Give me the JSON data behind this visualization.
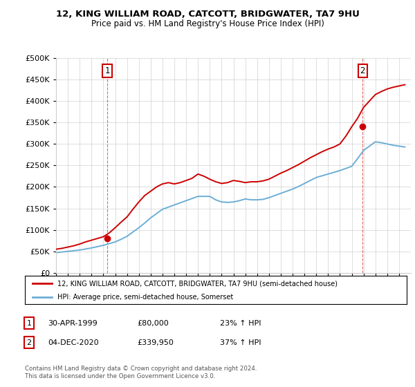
{
  "title": "12, KING WILLIAM ROAD, CATCOTT, BRIDGWATER, TA7 9HU",
  "subtitle": "Price paid vs. HM Land Registry's House Price Index (HPI)",
  "sale1_date": "30-APR-1999",
  "sale1_price": 80000,
  "sale1_hpi": "23% ↑ HPI",
  "sale1_year": 1999.33,
  "sale2_date": "04-DEC-2020",
  "sale2_price": 339950,
  "sale2_hpi": "37% ↑ HPI",
  "sale2_year": 2020.92,
  "legend_line1": "12, KING WILLIAM ROAD, CATCOTT, BRIDGWATER, TA7 9HU (semi-detached house)",
  "legend_line2": "HPI: Average price, semi-detached house, Somerset",
  "footer": "Contains HM Land Registry data © Crown copyright and database right 2024.\nThis data is licensed under the Open Government Licence v3.0.",
  "hpi_color": "#6baed6",
  "price_color": "#cc0000",
  "box_color": "#cc0000",
  "ylim": [
    0,
    500000
  ],
  "yticks": [
    0,
    50000,
    100000,
    150000,
    200000,
    250000,
    300000,
    350000,
    400000,
    450000,
    500000
  ],
  "xlim_start": 1995,
  "xlim_end": 2025,
  "hpi_years": [
    1995,
    1995.5,
    1996,
    1996.5,
    1997,
    1997.5,
    1998,
    1998.5,
    1999,
    1999.5,
    2000,
    2000.5,
    2001,
    2001.5,
    2002,
    2002.5,
    2003,
    2003.5,
    2004,
    2004.5,
    2005,
    2005.5,
    2006,
    2006.5,
    2007,
    2007.5,
    2008,
    2008.5,
    2009,
    2009.5,
    2010,
    2010.5,
    2011,
    2011.5,
    2012,
    2012.5,
    2013,
    2013.5,
    2014,
    2014.5,
    2015,
    2015.5,
    2016,
    2016.5,
    2017,
    2017.5,
    2018,
    2018.5,
    2019,
    2019.5,
    2020,
    2020.5,
    2021,
    2021.5,
    2022,
    2022.5,
    2023,
    2023.5,
    2024,
    2024.5
  ],
  "hpi_values": [
    47000,
    48500,
    50000,
    51500,
    53000,
    55500,
    58000,
    61000,
    64000,
    68000,
    72000,
    78000,
    85000,
    95000,
    105000,
    116000,
    128000,
    138000,
    148000,
    153000,
    158000,
    163000,
    168000,
    173000,
    178000,
    178000,
    178000,
    170000,
    165000,
    164000,
    165000,
    168000,
    172000,
    170000,
    170000,
    171000,
    175000,
    180000,
    185000,
    190000,
    195000,
    201000,
    208000,
    215000,
    222000,
    226000,
    230000,
    234000,
    238000,
    243000,
    248000,
    266000,
    285000,
    295000,
    305000,
    303000,
    300000,
    297000,
    295000,
    293000
  ],
  "price_years": [
    1995,
    1995.5,
    1996,
    1996.5,
    1997,
    1997.5,
    1998,
    1998.5,
    1999,
    1999.5,
    2000,
    2000.5,
    2001,
    2001.5,
    2002,
    2002.5,
    2003,
    2003.5,
    2004,
    2004.5,
    2005,
    2005.5,
    2006,
    2006.5,
    2007,
    2007.5,
    2008,
    2008.5,
    2009,
    2009.5,
    2010,
    2010.5,
    2011,
    2011.5,
    2012,
    2012.5,
    2013,
    2013.5,
    2014,
    2014.5,
    2015,
    2015.5,
    2016,
    2016.5,
    2017,
    2017.5,
    2018,
    2018.5,
    2019,
    2019.5,
    2020,
    2020.5,
    2021,
    2021.5,
    2022,
    2022.5,
    2023,
    2023.5,
    2024,
    2024.5
  ],
  "price_values": [
    55000,
    57000,
    60000,
    63000,
    67000,
    72000,
    76000,
    80000,
    84000,
    93000,
    105000,
    118000,
    130000,
    148000,
    165000,
    180000,
    190000,
    200000,
    207000,
    210000,
    207000,
    210000,
    215000,
    220000,
    230000,
    225000,
    218000,
    212000,
    208000,
    210000,
    215000,
    213000,
    210000,
    212000,
    212000,
    214000,
    218000,
    225000,
    232000,
    238000,
    245000,
    252000,
    260000,
    268000,
    275000,
    282000,
    288000,
    293000,
    300000,
    318000,
    340000,
    360000,
    385000,
    400000,
    415000,
    422000,
    428000,
    432000,
    435000,
    438000
  ]
}
